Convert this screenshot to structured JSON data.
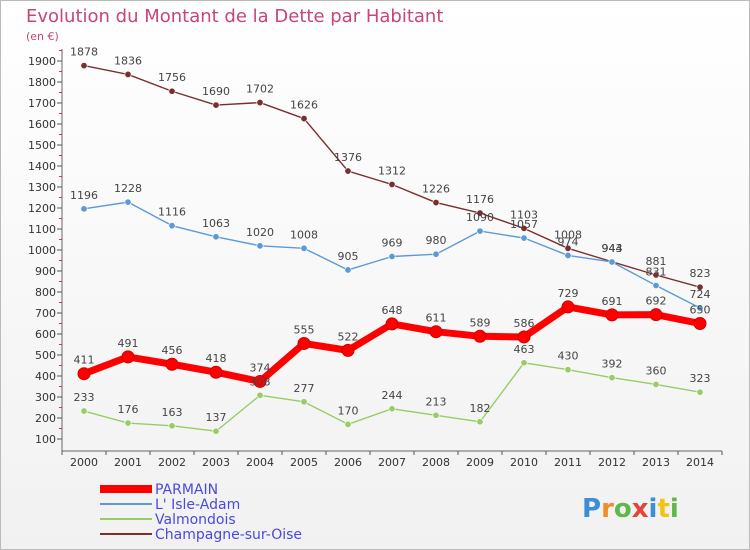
{
  "chart_data": {
    "type": "line",
    "title": "Evolution du Montant de la Dette par Habitant",
    "unit_label": "(en €)",
    "x": [
      "2000",
      "2001",
      "2002",
      "2003",
      "2004",
      "2005",
      "2006",
      "2007",
      "2008",
      "2009",
      "2010",
      "2011",
      "2012",
      "2013",
      "2014"
    ],
    "ylim": [
      100,
      1900
    ],
    "yticks": [
      100,
      200,
      300,
      400,
      500,
      600,
      700,
      800,
      900,
      1000,
      1100,
      1200,
      1300,
      1400,
      1500,
      1600,
      1700,
      1800,
      1900
    ],
    "grid": false,
    "legend_position": "bottom-left",
    "series": [
      {
        "name": "PARMAIN",
        "color": "#ff0000",
        "values": [
          411,
          491,
          456,
          418,
          374,
          555,
          522,
          648,
          611,
          589,
          586,
          729,
          691,
          692,
          650
        ]
      },
      {
        "name": "L' Isle-Adam",
        "color": "#5b9bd5",
        "values": [
          1196,
          1228,
          1116,
          1063,
          1020,
          1008,
          905,
          969,
          980,
          1090,
          1057,
          974,
          943,
          831,
          724
        ]
      },
      {
        "name": "Valmondois",
        "color": "#99cc66",
        "values": [
          233,
          176,
          163,
          137,
          308,
          277,
          170,
          244,
          213,
          182,
          463,
          430,
          392,
          360,
          323
        ]
      },
      {
        "name": "Champagne-sur-Oise",
        "color": "#7b2e2e",
        "values": [
          1878,
          1836,
          1756,
          1690,
          1702,
          1626,
          1376,
          1312,
          1226,
          1176,
          1103,
          1008,
          944,
          881,
          823
        ]
      }
    ]
  },
  "brand": {
    "text": "Proxiti",
    "colors": [
      "#3b8fd6",
      "#f28c28",
      "#5fb84a",
      "#e8423a",
      "#3b8fd6",
      "#f2c418",
      "#5fb84a"
    ]
  }
}
